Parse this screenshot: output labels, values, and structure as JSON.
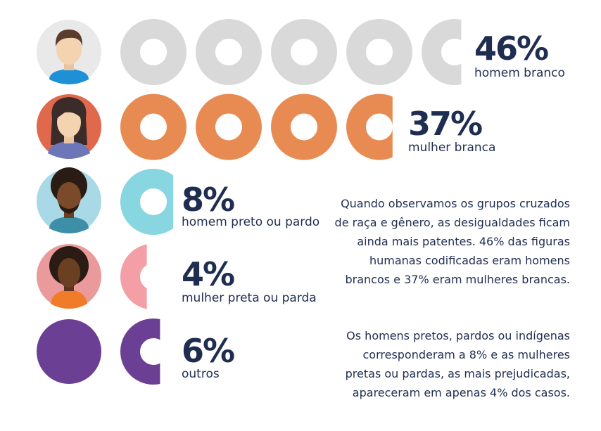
{
  "chart_data": {
    "type": "pictogram",
    "unit": 10,
    "series": [
      {
        "name": "homem branco",
        "percent_text": "46%",
        "value": 46,
        "color": "#d9d9d9",
        "icon": "white-man-avatar-icon"
      },
      {
        "name": "mulher branca",
        "percent_text": "37%",
        "value": 37,
        "color": "#e88b53",
        "icon": "white-woman-avatar-icon"
      },
      {
        "name": "homem preto ou pardo",
        "percent_text": "8%",
        "value": 8,
        "color": "#88d6df",
        "icon": "black-man-avatar-icon"
      },
      {
        "name": "mulher preta ou parda",
        "percent_text": "4%",
        "value": 4,
        "color": "#f49ea5",
        "icon": "black-woman-avatar-icon"
      },
      {
        "name": "outros",
        "percent_text": "6%",
        "value": 6,
        "color": "#6b3f93",
        "icon": "purple-circle-icon"
      }
    ]
  },
  "paragraphs": [
    "Quando observamos os grupos cruzados de raça e gênero, as desigualdades ficam ainda mais patentes. 46% das figuras humanas codificadas eram homens brancos e 37% eram mulheres brancas.",
    "Os homens pretos, pardos ou indígenas corresponderam a 8% e as mulheres pretas ou pardas, as mais prejudicadas, apareceram em apenas 4% dos casos."
  ]
}
